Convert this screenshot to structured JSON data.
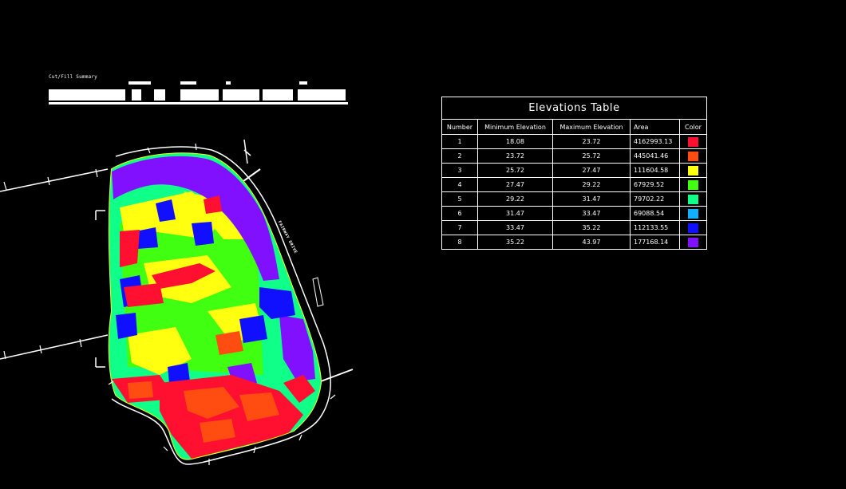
{
  "cutfill_summary": {
    "title": "Cut/Fill Summary"
  },
  "map": {
    "road_label": "FAIRWAY DRIVE"
  },
  "elevations_table": {
    "title": "Elevations Table",
    "columns": [
      "Number",
      "Minimum Elevation",
      "Maximum Elevation",
      "Area",
      "Color"
    ],
    "rows": [
      {
        "number": "1",
        "min": "18.08",
        "max": "23.72",
        "area": "4162993.13",
        "color": "#ff1030"
      },
      {
        "number": "2",
        "min": "23.72",
        "max": "25.72",
        "area": "445041.46",
        "color": "#ff4c10"
      },
      {
        "number": "3",
        "min": "25.72",
        "max": "27.47",
        "area": "111604.58",
        "color": "#ffff10"
      },
      {
        "number": "4",
        "min": "27.47",
        "max": "29.22",
        "area": "67929.52",
        "color": "#40ff10"
      },
      {
        "number": "5",
        "min": "29.22",
        "max": "31.47",
        "area": "79702.22",
        "color": "#10ff88"
      },
      {
        "number": "6",
        "min": "31.47",
        "max": "33.47",
        "area": "69088.54",
        "color": "#10b0ff"
      },
      {
        "number": "7",
        "min": "33.47",
        "max": "35.22",
        "area": "112133.55",
        "color": "#1010ff"
      },
      {
        "number": "8",
        "min": "35.22",
        "max": "43.97",
        "area": "177168.14",
        "color": "#8010ff"
      }
    ]
  }
}
